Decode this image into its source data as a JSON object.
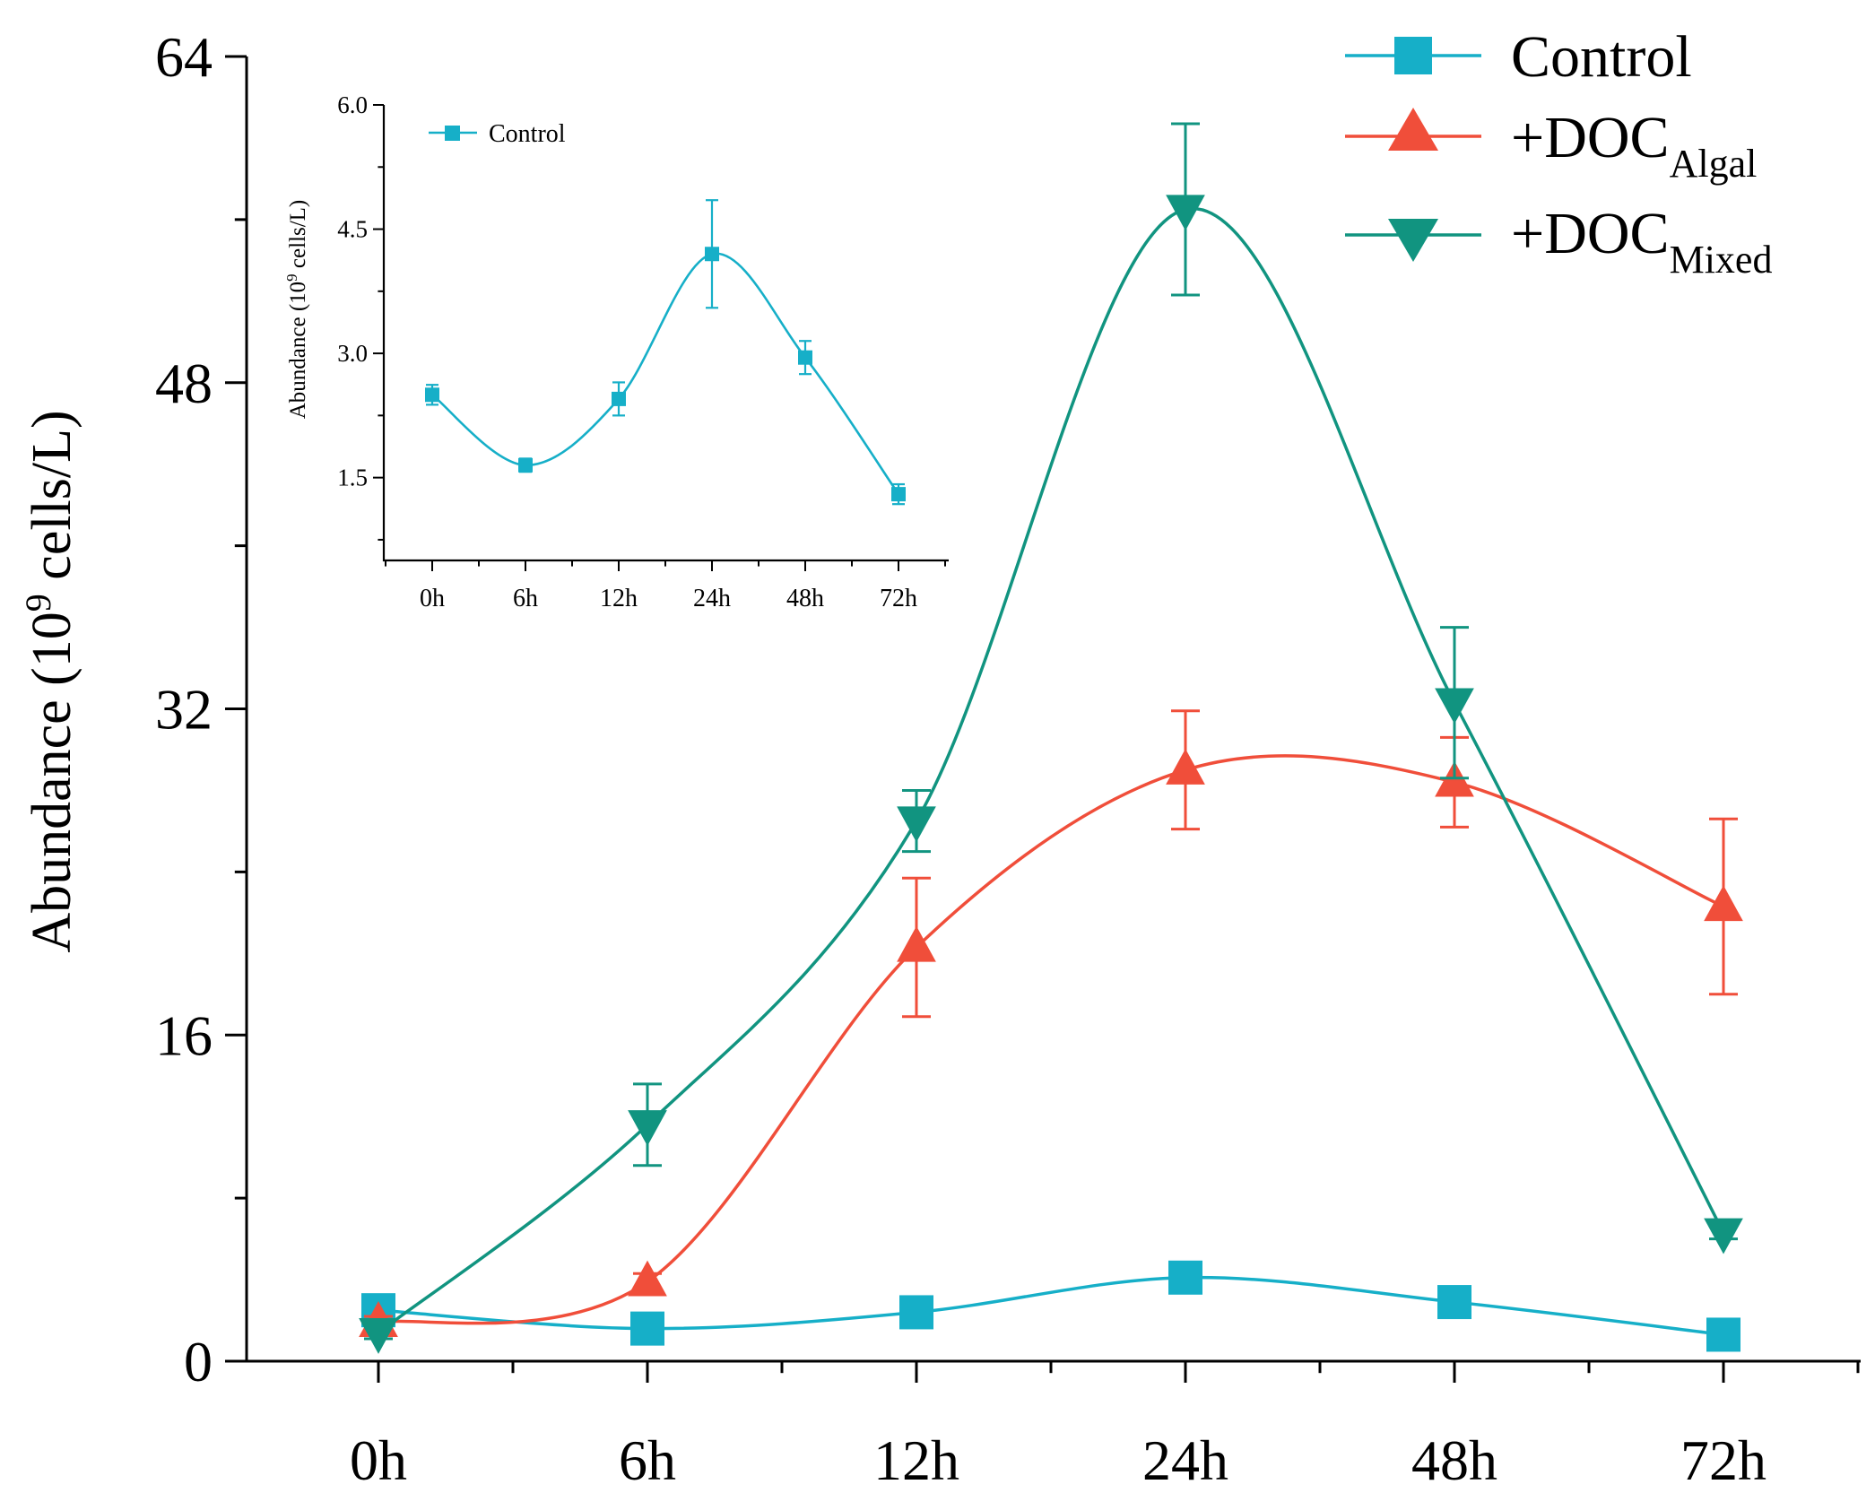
{
  "chart_data": [
    {
      "id": "main",
      "type": "line",
      "title": "",
      "xlabel": "",
      "ylabel": "Abundance (10",
      "ylabel_sup": "9",
      "ylabel_suffix": " cells/L)",
      "categories": [
        "0h",
        "6h",
        "12h",
        "24h",
        "48h",
        "72h"
      ],
      "ylim": [
        0,
        64
      ],
      "yticks": [
        "0",
        "16",
        "32",
        "48",
        "64"
      ],
      "legend_position": "top-right",
      "series": [
        {
          "name": "Control",
          "legend_main": "Control",
          "legend_sub": "",
          "color": "#16AFC8",
          "marker": "square",
          "values": [
            2.5,
            1.6,
            2.4,
            4.1,
            2.9,
            1.3
          ],
          "errors": [
            0.2,
            0.1,
            0.2,
            0.6,
            0.2,
            0.1
          ]
        },
        {
          "name": "+DOCAlgal",
          "legend_main": "+DOC",
          "legend_sub": "Algal",
          "color": "#F04E3A",
          "marker": "triangle-up",
          "values": [
            1.9,
            3.9,
            20.3,
            29.0,
            28.4,
            22.3
          ],
          "errors": [
            0.3,
            0.4,
            3.4,
            2.9,
            2.2,
            4.3
          ]
        },
        {
          "name": "+DOCMixed",
          "legend_main": "+DOC",
          "legend_sub": "Mixed",
          "color": "#119480",
          "marker": "triangle-down",
          "values": [
            1.4,
            11.6,
            26.5,
            56.5,
            32.3,
            6.3
          ],
          "errors": [
            0.3,
            2.0,
            1.5,
            4.2,
            3.7,
            0.3
          ]
        }
      ]
    },
    {
      "id": "inset",
      "type": "line",
      "title": "",
      "xlabel": "",
      "ylabel": "Abundance (10",
      "ylabel_sup": "9",
      "ylabel_suffix": " cells/L)",
      "categories": [
        "0h",
        "6h",
        "12h",
        "24h",
        "48h",
        "72h"
      ],
      "ylim": [
        0.5,
        6.0
      ],
      "yticks": [
        "1.5",
        "3.0",
        "4.5",
        "6.0"
      ],
      "legend_position": "top-left",
      "series": [
        {
          "name": "Control",
          "legend_main": "Control",
          "color": "#16AFC8",
          "marker": "square",
          "values": [
            2.5,
            1.65,
            2.45,
            4.2,
            2.95,
            1.3
          ],
          "errors": [
            0.12,
            0.08,
            0.2,
            0.65,
            0.2,
            0.12
          ]
        }
      ]
    }
  ]
}
